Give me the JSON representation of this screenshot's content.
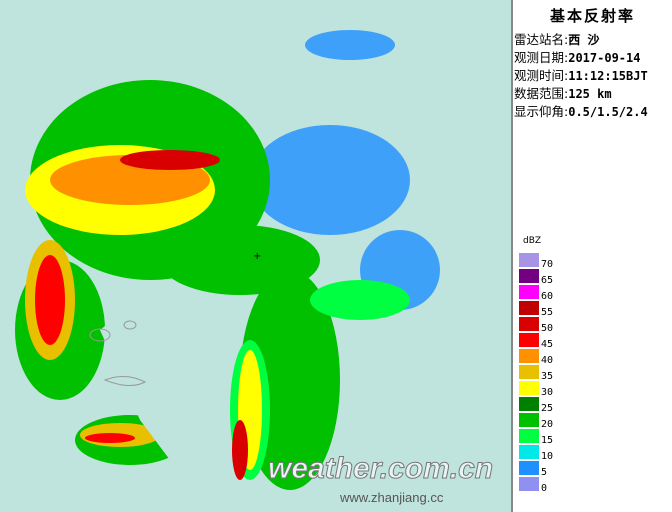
{
  "panel": {
    "title": "基本反射率",
    "rows": [
      {
        "label": "雷达站名:",
        "value": "西 沙"
      },
      {
        "label": "观测日期:",
        "value": "2017-09-14"
      },
      {
        "label": "观测时间:",
        "value": "11:12:15BJT"
      },
      {
        "label": "数据范围:",
        "value": "125 km"
      },
      {
        "label": "显示仰角:",
        "value": "0.5/1.5/2.4"
      }
    ]
  },
  "legend": {
    "unit": "dBZ",
    "items": [
      {
        "label": "70",
        "color": "#a894e4"
      },
      {
        "label": "65",
        "color": "#720080"
      },
      {
        "label": "60",
        "color": "#ff00ff"
      },
      {
        "label": "55",
        "color": "#c00000"
      },
      {
        "label": "50",
        "color": "#d80000"
      },
      {
        "label": "45",
        "color": "#ff0000"
      },
      {
        "label": "40",
        "color": "#ff9000"
      },
      {
        "label": "35",
        "color": "#e8c000"
      },
      {
        "label": "30",
        "color": "#ffff00"
      },
      {
        "label": "25",
        "color": "#008000"
      },
      {
        "label": "20",
        "color": "#00c000"
      },
      {
        "label": "15",
        "color": "#00ff40"
      },
      {
        "label": "10",
        "color": "#00e8e8"
      },
      {
        "label": "5",
        "color": "#1e90ff"
      },
      {
        "label": "0",
        "color": "#9090f0"
      }
    ]
  },
  "watermark": {
    "main": "weather.com.cn",
    "sub": "www.zhanjiang.cc"
  },
  "colors": {
    "background": "#bfe3dd"
  }
}
